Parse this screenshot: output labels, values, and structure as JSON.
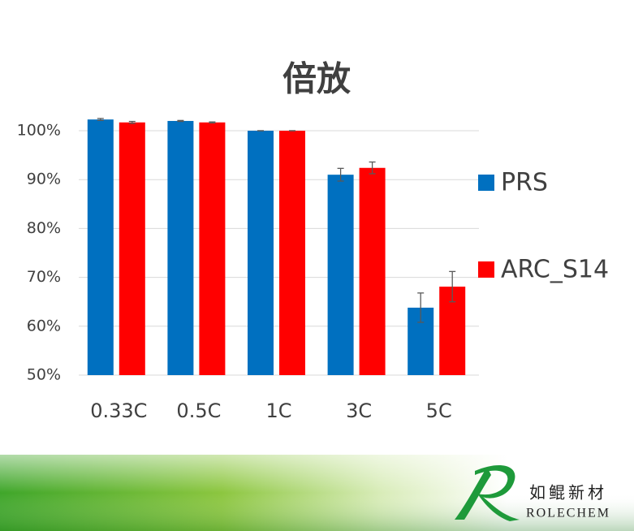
{
  "chart_data": {
    "type": "bar",
    "title": "倍放",
    "categories": [
      "0.33C",
      "0.5C",
      "1C",
      "3C",
      "5C"
    ],
    "series": [
      {
        "name": "PRS",
        "color": "#0070c0",
        "values": [
          102.3,
          102.0,
          100,
          91.0,
          63.8
        ],
        "errors": [
          0.2,
          0.1,
          0,
          1.3,
          3.0
        ]
      },
      {
        "name": "ARC_S14",
        "color": "#ff0000",
        "values": [
          101.7,
          101.7,
          100,
          92.4,
          68.1
        ],
        "errors": [
          0.2,
          0.1,
          0,
          1.2,
          3.1
        ]
      }
    ],
    "ylim": [
      50,
      100
    ],
    "yticks": [
      {
        "value": 50,
        "label": "50%"
      },
      {
        "value": 60,
        "label": "60%"
      },
      {
        "value": 70,
        "label": "70%"
      },
      {
        "value": 80,
        "label": "80%"
      },
      {
        "value": 90,
        "label": "90%"
      },
      {
        "value": 100,
        "label": "100%"
      }
    ],
    "grid": true,
    "legend": "right"
  },
  "logo": {
    "name": "如鲲新材",
    "brand": "ROLECHEM"
  }
}
